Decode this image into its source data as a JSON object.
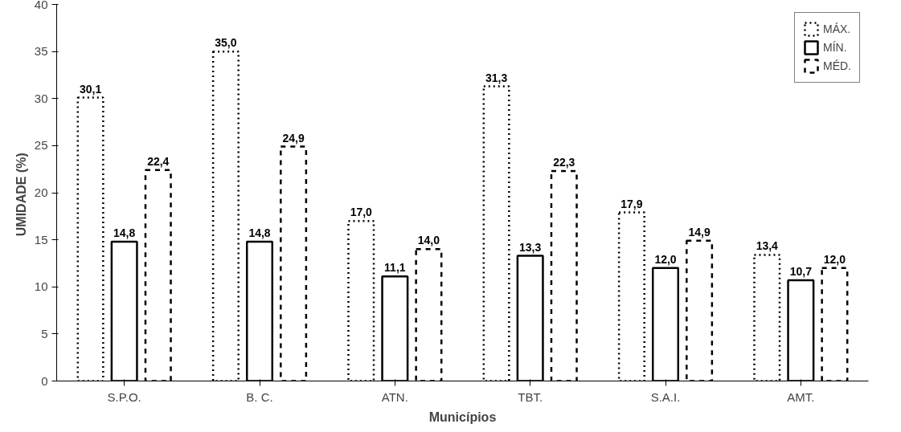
{
  "chart_data": {
    "type": "bar",
    "xlabel": "Municípios",
    "ylabel": "UMIDADE  (%)",
    "categories": [
      "S.P.O.",
      "B. C.",
      "ATN.",
      "TBT.",
      "S.A.I.",
      "AMT."
    ],
    "series": [
      {
        "name": "MÁX.",
        "color": "#000000",
        "line_style": "dotted",
        "values": [
          30.1,
          35.0,
          17.0,
          31.3,
          17.9,
          13.4
        ],
        "value_labels": [
          "30,1",
          "35,0",
          "17,0",
          "31,3",
          "17,9",
          "13,4"
        ]
      },
      {
        "name": "MÍN.",
        "color": "#000000",
        "line_style": "solid",
        "values": [
          14.8,
          14.8,
          11.1,
          13.3,
          12.0,
          10.7
        ],
        "value_labels": [
          "14,8",
          "14,8",
          "11,1",
          "13,3",
          "12,0",
          "10,7"
        ]
      },
      {
        "name": "MÉD.",
        "color": "#000000",
        "line_style": "dashed",
        "values": [
          22.4,
          24.9,
          14.0,
          22.3,
          14.9,
          12.0
        ],
        "value_labels": [
          "22,4",
          "24,9",
          "14,0",
          "22,3",
          "14,9",
          "12,0"
        ]
      }
    ],
    "ylim": [
      0,
      40
    ],
    "yticks": [
      0,
      5,
      10,
      15,
      20,
      25,
      30,
      35,
      40
    ],
    "grid": false,
    "legend": "top right"
  }
}
